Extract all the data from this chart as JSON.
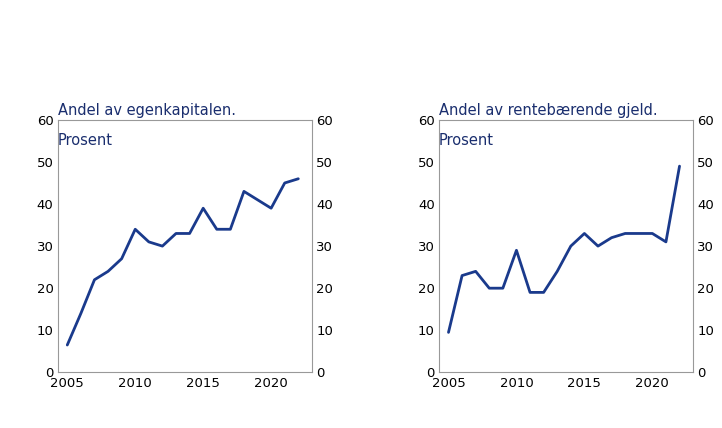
{
  "years": [
    2005,
    2006,
    2007,
    2008,
    2009,
    2010,
    2011,
    2012,
    2013,
    2014,
    2015,
    2016,
    2017,
    2018,
    2019,
    2020,
    2021,
    2022
  ],
  "equity": [
    6.5,
    14,
    22,
    24,
    27,
    34,
    31,
    30,
    33,
    33,
    39,
    34,
    34,
    43,
    41,
    39,
    45,
    46
  ],
  "debt": [
    9.5,
    23,
    24,
    20,
    20,
    29,
    19,
    19,
    24,
    30,
    33,
    30,
    32,
    33,
    33,
    33,
    31,
    49
  ],
  "title1": "Andel av egenkapitalen.\nProsent",
  "title2": "Andel av rentebærende gjeld.\nProsent",
  "ylim": [
    0,
    60
  ],
  "yticks": [
    0,
    10,
    20,
    30,
    40,
    50,
    60
  ],
  "xticks": [
    2005,
    2010,
    2015,
    2020
  ],
  "line_color": "#1a3a8c",
  "line_width": 2.0,
  "title_color": "#1a2e6e",
  "title_fontsize": 10.5,
  "tick_fontsize": 9.5,
  "background_color": "#ffffff",
  "spine_color": "#999999"
}
